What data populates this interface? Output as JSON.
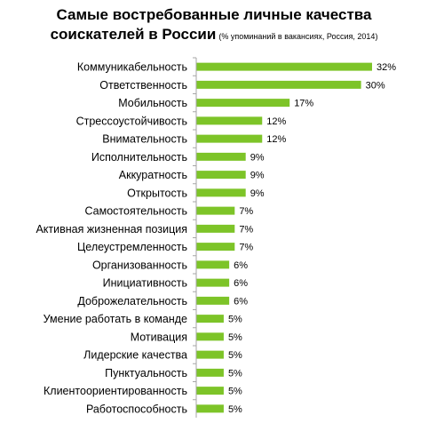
{
  "chart_data": {
    "type": "bar",
    "orientation": "horizontal",
    "title_line1": "Самые востребованные личные качества",
    "title_line2": "соискателей в России",
    "subtitle": "(% упоминаний в вакансиях, Россия, 2014)",
    "categories": [
      "Коммуникабельность",
      "Ответственность",
      "Мобильность",
      "Стрессоустойчивость",
      "Внимательность",
      "Исполнительность",
      "Аккуратность",
      "Открытость",
      "Самостоятельность",
      "Активная жизненная позиция",
      "Целеустремленность",
      "Организованность",
      "Инициативность",
      "Доброжелательность",
      "Умение работать в команде",
      "Мотивация",
      "Лидерские качества",
      "Пунктуальность",
      "Клиентоориентированность",
      "Работоспособность"
    ],
    "values": [
      32,
      30,
      17,
      12,
      12,
      9,
      9,
      9,
      7,
      7,
      7,
      6,
      6,
      6,
      5,
      5,
      5,
      5,
      5,
      5
    ],
    "value_labels": [
      "32%",
      "30%",
      "17%",
      "12%",
      "12%",
      "9%",
      "9%",
      "9%",
      "7%",
      "7%",
      "7%",
      "6%",
      "6%",
      "6%",
      "5%",
      "5%",
      "5%",
      "5%",
      "5%",
      "5%"
    ],
    "xlim": [
      0,
      32
    ],
    "bar_color": "#7dc428",
    "axis_color": "#a6a6a6",
    "grid": false,
    "legend": "none"
  }
}
